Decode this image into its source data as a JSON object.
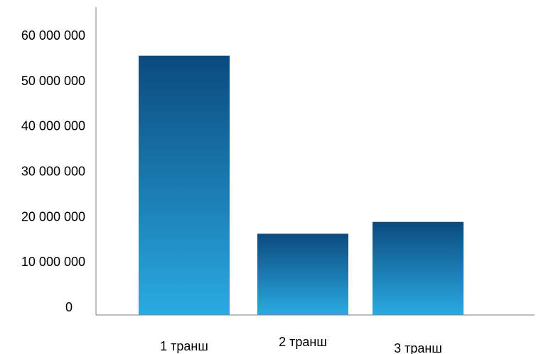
{
  "chart_data": {
    "type": "bar",
    "categories": [
      "1 транш",
      "2 транш",
      "3 транш"
    ],
    "values": [
      56800000,
      17800000,
      20400000
    ],
    "title": "",
    "xlabel": "",
    "ylabel": "",
    "ylim": [
      0,
      60000000
    ],
    "yticks": [
      {
        "value": 0,
        "label": "0"
      },
      {
        "value": 10000000,
        "label": "10 000 000"
      },
      {
        "value": 20000000,
        "label": "20 000 000"
      },
      {
        "value": 30000000,
        "label": "30 000 000"
      },
      {
        "value": 40000000,
        "label": "40 000 000"
      },
      {
        "value": 50000000,
        "label": "50 000 000"
      },
      {
        "value": 60000000,
        "label": "60 000 000"
      }
    ],
    "grid": false,
    "legend": "none",
    "colors": {
      "bar_top": "#0b4a7e",
      "bar_bottom": "#29abe2",
      "axis": "#7f7f7f"
    }
  }
}
